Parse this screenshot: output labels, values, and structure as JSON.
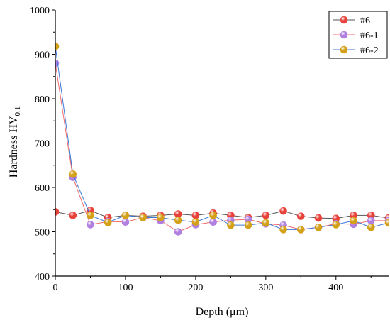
{
  "chart_data": {
    "type": "line",
    "title": "",
    "xlabel": "Depth (μm)",
    "ylabel_main": "Hardness HV",
    "ylabel_sub": "0.1",
    "xlim": [
      0,
      475
    ],
    "ylim": [
      400,
      1000
    ],
    "x_ticks": [
      0,
      100,
      200,
      300,
      400
    ],
    "y_ticks": [
      400,
      500,
      600,
      700,
      800,
      900,
      1000
    ],
    "grid": false,
    "legend_position": "top-right",
    "x": [
      0,
      25,
      50,
      75,
      100,
      125,
      150,
      175,
      200,
      225,
      250,
      275,
      300,
      325,
      350,
      375,
      400,
      425,
      450,
      475
    ],
    "series": [
      {
        "name": "#6",
        "line_color": "#555555",
        "marker_color": "#e8413a",
        "values": [
          545,
          537,
          548,
          532,
          537,
          535,
          537,
          540,
          537,
          542,
          537,
          532,
          537,
          547,
          535,
          531,
          530,
          537,
          537,
          531
        ]
      },
      {
        "name": "#6-1",
        "line_color": "#ef6b6b",
        "marker_color": "#b07fe0",
        "values": [
          880,
          623,
          516,
          523,
          522,
          532,
          525,
          500,
          516,
          522,
          526,
          528,
          518,
          515,
          505,
          510,
          518,
          517,
          525,
          525
        ]
      },
      {
        "name": "#6-2",
        "line_color": "#3a78d6",
        "marker_color": "#d4a017",
        "values": [
          918,
          630,
          537,
          521,
          537,
          532,
          532,
          526,
          522,
          537,
          515,
          515,
          520,
          505,
          505,
          510,
          516,
          525,
          510,
          520
        ]
      }
    ]
  }
}
